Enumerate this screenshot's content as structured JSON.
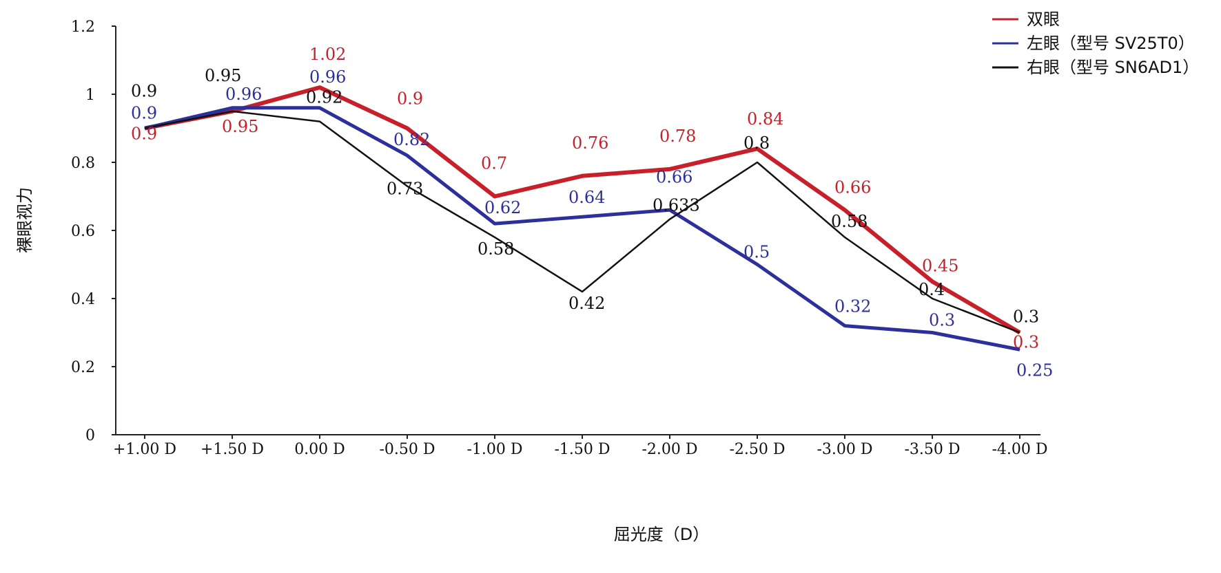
{
  "chart_data": {
    "type": "line",
    "title": "",
    "xlabel": "屈光度（D）",
    "ylabel": "裸眼视力",
    "ylim": [
      0,
      1.2
    ],
    "yticks": [
      "0",
      "0.2",
      "0.4",
      "0.6",
      "0.8",
      "1",
      "1.2"
    ],
    "grid": false,
    "legend_position": "top-right",
    "categories": [
      "+1.00 D",
      "+1.50 D",
      "0.00 D",
      "-0.50 D",
      "-1.00 D",
      "-1.50 D",
      "-2.00 D",
      "-2.50 D",
      "-3.00 D",
      "-3.50 D",
      "-4.00 D"
    ],
    "series": [
      {
        "name": "双眼",
        "color": "#c8202a",
        "values": [
          0.9,
          0.95,
          1.02,
          0.9,
          0.7,
          0.76,
          0.78,
          0.84,
          0.66,
          0.45,
          0.3
        ],
        "labels": [
          "0.9",
          "0.95",
          "1.02",
          "0.9",
          "0.7",
          "0.76",
          "0.78",
          "0.84",
          "0.66",
          "0.45",
          "0.3"
        ]
      },
      {
        "name": "左眼（型号 SV25T0）",
        "color": "#2d2f9a",
        "values": [
          0.9,
          0.96,
          0.96,
          0.82,
          0.62,
          0.64,
          0.66,
          0.5,
          0.32,
          0.3,
          0.25
        ],
        "labels": [
          "0.9",
          "0.96",
          "0.96",
          "0.82",
          "0.62",
          "0.64",
          "0.66",
          "0.5",
          "0.32",
          "0.3",
          "0.25"
        ]
      },
      {
        "name": "右眼（型号 SN6AD1）",
        "color": "#111111",
        "values": [
          0.9,
          0.95,
          0.92,
          0.73,
          0.58,
          0.42,
          0.633,
          0.8,
          0.58,
          0.4,
          0.3
        ],
        "labels": [
          "0.9",
          "0.95",
          "0.92",
          "0.73",
          "0.58",
          "0.42",
          "0.633",
          "0.8",
          "0.58",
          "0.4",
          "0.3"
        ]
      }
    ]
  }
}
